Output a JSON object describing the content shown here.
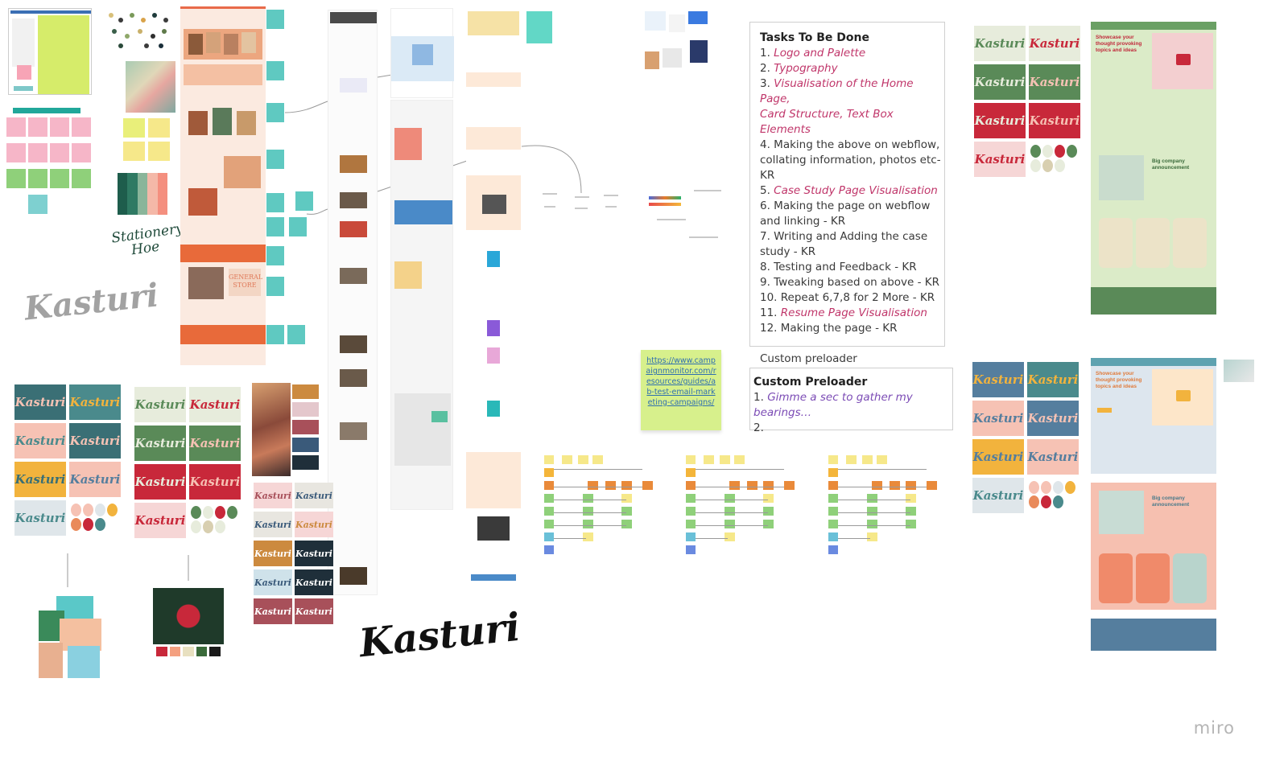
{
  "board": {
    "brand": "Kasturi",
    "watermark": "miro",
    "script_logo": "Stationery Hoe"
  },
  "tasks": {
    "title": "Tasks To Be Done",
    "items": [
      {
        "num": "1.",
        "text": "Logo and Palette",
        "link": true
      },
      {
        "num": "2.",
        "text": "Typography",
        "link": true
      },
      {
        "num": "3.",
        "text": "Visualisation of the Home Page,",
        "link": true
      },
      {
        "num": "",
        "text": "Card Structure, Text Box Elements",
        "link": true
      },
      {
        "num": "4.",
        "text": "Making the above on webflow,",
        "link": false
      },
      {
        "num": "",
        "text": "collating information, photos etc-",
        "link": false
      },
      {
        "num": "",
        "text": "KR",
        "link": false
      },
      {
        "num": "5.",
        "text": "Case Study Page Visualisation",
        "link": true
      },
      {
        "num": "6.",
        "text": "Making the page on webflow",
        "link": false
      },
      {
        "num": "",
        "text": "and linking - KR",
        "link": false
      },
      {
        "num": "7.",
        "text": "Writing and Adding the case",
        "link": false
      },
      {
        "num": "",
        "text": "study - KR",
        "link": false
      },
      {
        "num": "8.",
        "text": "Testing and Feedback - KR",
        "link": false
      },
      {
        "num": "9.",
        "text": " Tweaking based on above - KR",
        "link": false
      },
      {
        "num": "10.",
        "text": "Repeat 6,7,8 for 2 More - KR",
        "link": false
      },
      {
        "num": "11.",
        "text": "Resume Page Visualisation",
        "link": true
      },
      {
        "num": "12.",
        "text": "Making the page - KR",
        "link": false
      }
    ],
    "footer": "Custom preloader"
  },
  "preloader": {
    "title": "Custom Preloader",
    "item1_num": "1.",
    "item1_text": "Gimme a sec to gather my bearings…",
    "item2_num": "2."
  },
  "link_sticky": {
    "text": "https://www.campaignmonitor.com/resources/guides/ab-test-email-marketing-campaigns/"
  },
  "mockups": {
    "headline": "Showcase your thought provoking topics and ideas",
    "announcement": "Big company announcement",
    "shop_title": "GENERAL STORE"
  },
  "palette": {
    "teal": "#4a8a8c",
    "dark_teal": "#3a6f75",
    "peach": "#f6c2b4",
    "green": "#5a8a58",
    "red": "#c8283a",
    "yellow": "#f2b33d",
    "blue": "#557e9e",
    "pale": "#e7ecdc",
    "orange": "#e98a5a"
  }
}
